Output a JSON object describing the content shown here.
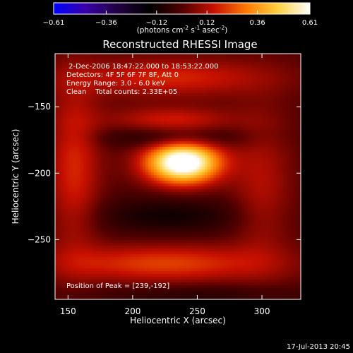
{
  "chart_data": {
    "type": "heatmap",
    "title": "Reconstructed RHESSI Image",
    "xlabel": "Heliocentric X (arcsec)",
    "ylabel": "Heliocentric Y (arcsec)",
    "xlim": [
      140,
      330
    ],
    "ylim": [
      -295,
      -110
    ],
    "x_ticks": [
      150,
      200,
      250,
      300
    ],
    "y_ticks": [
      -150,
      -200,
      -250
    ],
    "colorbar": {
      "range": [
        -0.61,
        0.61
      ],
      "tick_values": [
        -0.61,
        -0.36,
        -0.12,
        0.12,
        0.36,
        0.61
      ],
      "tick_labels": [
        "-0.61",
        "-0.36",
        "-0.12",
        "0.12",
        "0.36",
        "0.61"
      ],
      "unit_prefix": "(photons cm",
      "unit_exp1": "-2",
      "unit_mid": " s",
      "unit_exp2": "-1",
      "unit_mid2": " asec",
      "unit_exp3": "-2",
      "unit_suffix": ")",
      "colormap": [
        "#0000ff",
        "#3800a8",
        "#200040",
        "#000000",
        "#500000",
        "#c81000",
        "#ff7800",
        "#ffd040",
        "#ffffff"
      ]
    },
    "annotations": {
      "line1": " 2-Dec-2006 18:47:22.000 to 18:53:22.000",
      "line2": "Detectors: 4F 5F 6F 7F 8F, Att 0",
      "line3": "Energy Range: 3.0 - 6.0 keV",
      "line4": "Clean    Total counts: 2.33E+05",
      "peak_text": "Position of Peak = [239,-192]"
    },
    "peak": [
      239,
      -192
    ],
    "components": [
      {
        "kind": "peak",
        "x": 239,
        "y": -192,
        "sx": 20,
        "sy": 11,
        "amp": 0.72
      },
      {
        "kind": "positive_arc",
        "x": 230,
        "y": -160,
        "sx": 34,
        "sy": 7,
        "amp": 0.16
      },
      {
        "kind": "positive_arc",
        "x": 225,
        "y": -268,
        "sx": 60,
        "sy": 10,
        "amp": 0.22
      },
      {
        "kind": "positive_lobe",
        "x": 155,
        "y": -195,
        "sx": 14,
        "sy": 45,
        "amp": 0.18
      },
      {
        "kind": "positive_lobe",
        "x": 300,
        "y": -210,
        "sx": 16,
        "sy": 40,
        "amp": 0.12
      },
      {
        "kind": "positive_top",
        "x": 230,
        "y": -128,
        "sx": 55,
        "sy": 10,
        "amp": 0.18
      },
      {
        "kind": "negative_arc",
        "x": 232,
        "y": -173,
        "sx": 38,
        "sy": 6,
        "amp": -0.13
      },
      {
        "kind": "negative_arc",
        "x": 228,
        "y": -232,
        "sx": 42,
        "sy": 10,
        "amp": -0.12
      },
      {
        "kind": "negative_region",
        "x": 250,
        "y": -292,
        "sx": 60,
        "sy": 6,
        "amp": -0.08
      }
    ]
  },
  "footer": {
    "date": "17-Jul-2013 20:45"
  }
}
